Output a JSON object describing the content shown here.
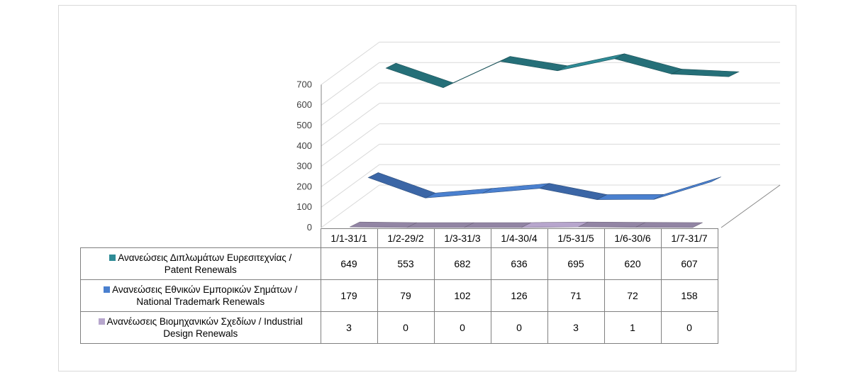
{
  "colors": {
    "patent": "#2e8b96",
    "trademark": "#4a80cf",
    "design": "#b7a6cd",
    "grid": "#d9d9d9"
  },
  "chart_data": {
    "type": "line",
    "style": "3d-line",
    "categories": [
      "1/1-31/1",
      "1/2-29/2",
      "1/3-31/3",
      "1/4-30/4",
      "1/5-31/5",
      "1/6-30/6",
      "1/7-31/7"
    ],
    "y_ticks": [
      "0",
      "100",
      "200",
      "300",
      "400",
      "500",
      "600",
      "700"
    ],
    "ylim": [
      0,
      700
    ],
    "grid": true,
    "legend": "data-table",
    "series": [
      {
        "name": "Ανανεώσεις Διπλωμάτων Ευρεσιτεχνίας  / Patent Renewals",
        "label_line1": "Ανανεώσεις Διπλωμάτων Ευρεσιτεχνίας  /",
        "label_line2": "Patent Renewals",
        "values": [
          649,
          553,
          682,
          636,
          695,
          620,
          607
        ]
      },
      {
        "name": "Ανανεώσεις Εθνικών Εμπορικών Σημάτων / National Trademark Renewals",
        "label_line1": "Ανανεώσεις Εθνικών Εμπορικών Σημάτων /",
        "label_line2": "National Trademark Renewals",
        "values": [
          179,
          79,
          102,
          126,
          71,
          72,
          158
        ]
      },
      {
        "name": "Ανανέωσεις Βιομηχανικών Σχεδίων / Industrial Design Renewals",
        "label_line1": "Ανανέωσεις Βιομηχανικών Σχεδίων / Industrial",
        "label_line2": "Design Renewals",
        "values": [
          3,
          0,
          0,
          0,
          3,
          1,
          0
        ]
      }
    ]
  }
}
